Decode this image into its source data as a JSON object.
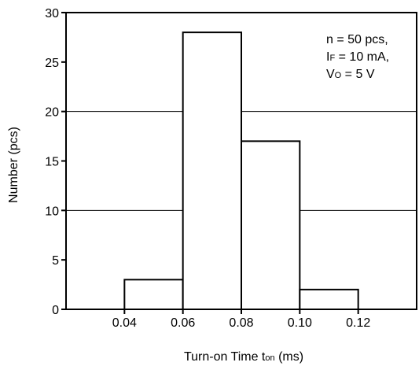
{
  "chart_data": {
    "type": "bar",
    "title": "",
    "xlabel": {
      "main": "Turn-on Time  t",
      "sub": "on",
      "unit": " (ms)"
    },
    "ylabel": "Number  (pcs)",
    "xlim": [
      0.02,
      0.14
    ],
    "ylim": [
      0,
      30
    ],
    "xticks": [
      0.04,
      0.06,
      0.08,
      0.1,
      0.12
    ],
    "xtick_labels": [
      "0.04",
      "0.06",
      "0.08",
      "0.10",
      "0.12"
    ],
    "yticks": [
      0,
      5,
      10,
      15,
      20,
      25,
      30
    ],
    "ytick_labels": [
      "0",
      "5",
      "10",
      "15",
      "20",
      "25",
      "30"
    ],
    "gridlines_y": [
      10,
      20
    ],
    "grid": "horizontal at 10 and 20",
    "bins": [
      {
        "start": 0.04,
        "end": 0.06,
        "value": 3
      },
      {
        "start": 0.06,
        "end": 0.08,
        "value": 28
      },
      {
        "start": 0.08,
        "end": 0.1,
        "value": 17
      },
      {
        "start": 0.1,
        "end": 0.12,
        "value": 2
      }
    ],
    "annotations": [
      [
        {
          "t": "n = 50 pcs,"
        }
      ],
      [
        {
          "t": "I"
        },
        {
          "t": "F",
          "sub": true
        },
        {
          "t": " = 10 mA,"
        }
      ],
      [
        {
          "t": "V"
        },
        {
          "t": "O",
          "sub": true
        },
        {
          "t": " = 5 V"
        }
      ]
    ],
    "annotation_placement": "top-right"
  }
}
